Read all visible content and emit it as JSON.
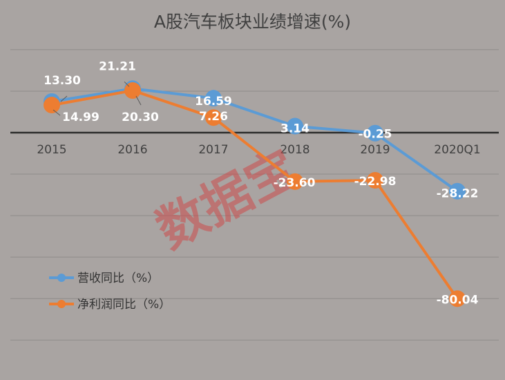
{
  "title": "A股汽车板块业绩增速(%)",
  "watermark": "数据宝",
  "colors": {
    "revenue": "#5b9bd5",
    "profit": "#ed7d31",
    "grid": "#8f8b89",
    "zero_axis": "#2b2b2b",
    "background": "#a9a4a2"
  },
  "chart_data": {
    "type": "line",
    "title": "A股汽车板块业绩增速(%)",
    "categories": [
      "2015",
      "2016",
      "2017",
      "2018",
      "2019",
      "2020Q1"
    ],
    "ylim": [
      -100,
      40
    ],
    "grid": true,
    "legend_position": "bottom-left",
    "series": [
      {
        "key": "revenue",
        "name": "营收同比（%）",
        "values": [
          14.99,
          21.21,
          16.59,
          3.14,
          -0.25,
          -28.22
        ],
        "labels": [
          "14.99",
          "21.21",
          "16.59",
          "3.14",
          "-0.25",
          "-28.22"
        ]
      },
      {
        "key": "profit",
        "name": "净利润同比（%）",
        "values": [
          13.3,
          20.3,
          7.26,
          -23.6,
          -22.98,
          -80.04
        ],
        "labels": [
          "13.30",
          "20.30",
          "7.26",
          "-23.60",
          "-22.98",
          "-80.04"
        ]
      }
    ]
  }
}
